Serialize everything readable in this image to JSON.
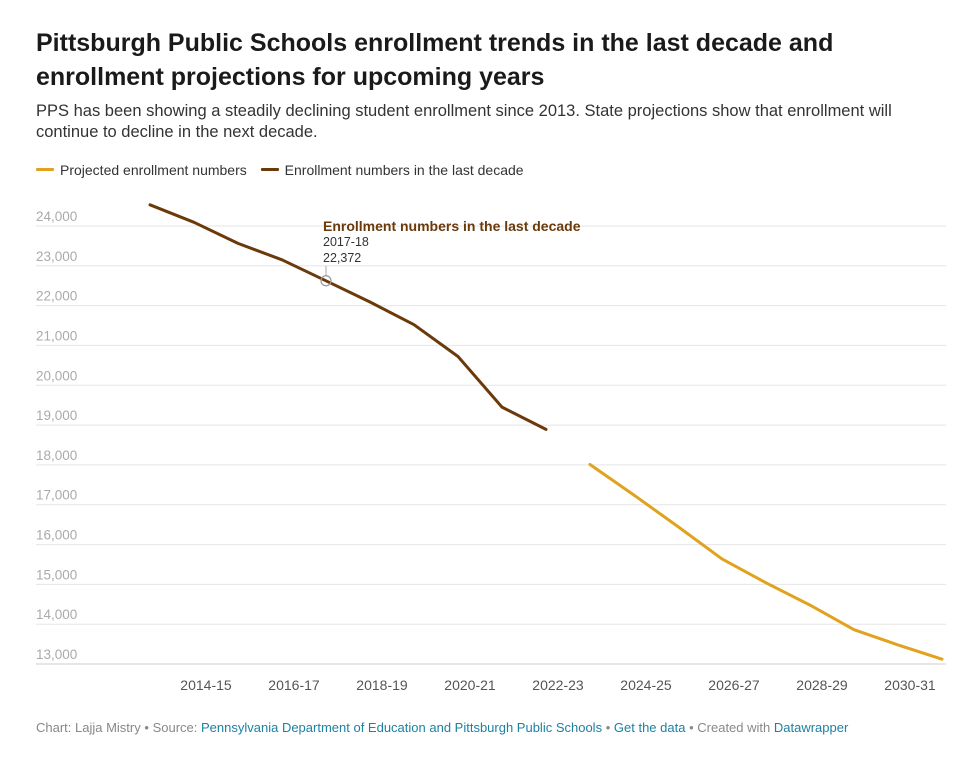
{
  "header": {
    "title": "Pittsburgh Public Schools enrollment trends in the last decade and enrollment projections for upcoming years",
    "description": "PPS has been showing a steadily declining student enrollment since 2013. State projections show that enrollment will continue to decline in the next decade."
  },
  "chart_data": {
    "type": "line",
    "x": [
      "2013-14",
      "2014-15",
      "2015-16",
      "2016-17",
      "2017-18",
      "2018-19",
      "2019-20",
      "2020-21",
      "2021-22",
      "2022-23",
      "2023-24",
      "2024-25",
      "2025-26",
      "2026-27",
      "2027-28",
      "2028-29",
      "2029-30",
      "2030-31",
      "2031-32"
    ],
    "x_tick_labels": [
      "2014-15",
      "2016-17",
      "2018-19",
      "2020-21",
      "2022-23",
      "2024-25",
      "2026-27",
      "2028-29",
      "2030-31"
    ],
    "y_tick_labels": [
      "13,000",
      "14,000",
      "15,000",
      "16,000",
      "17,000",
      "18,000",
      "19,000",
      "20,000",
      "21,000",
      "22,000",
      "23,000",
      "24,000"
    ],
    "ylim": [
      12750,
      24300
    ],
    "grid": true,
    "legend_position": "top-left",
    "series": [
      {
        "name": "Projected enrollment numbers",
        "color": "#e0a21f",
        "values": [
          null,
          null,
          null,
          null,
          null,
          null,
          null,
          null,
          null,
          null,
          17760,
          16990,
          16200,
          15390,
          14790,
          14230,
          13610,
          13230,
          12870
        ]
      },
      {
        "name": "Enrollment numbers in the last decade",
        "color": "#6b3a0b",
        "values": [
          24280,
          23840,
          23310,
          22900,
          22372,
          21840,
          21270,
          20470,
          19200,
          18640,
          null,
          null,
          null,
          null,
          null,
          null,
          null,
          null,
          null
        ]
      }
    ],
    "annotation": {
      "series_name": "Enrollment numbers in the last decade",
      "x_label": "2017-18",
      "value_label": "22,372",
      "x": "2017-18",
      "y": 22372
    }
  },
  "footer": {
    "credit": "Chart: Lajja Mistry",
    "source_prefix": "Source:",
    "source_link": "Pennsylvania Department of Education and Pittsburgh Public Schools",
    "get_data": "Get the data",
    "created_with": "Created with",
    "tool": "Datawrapper",
    "separator": "•",
    "link_color": "#1d81a2"
  }
}
